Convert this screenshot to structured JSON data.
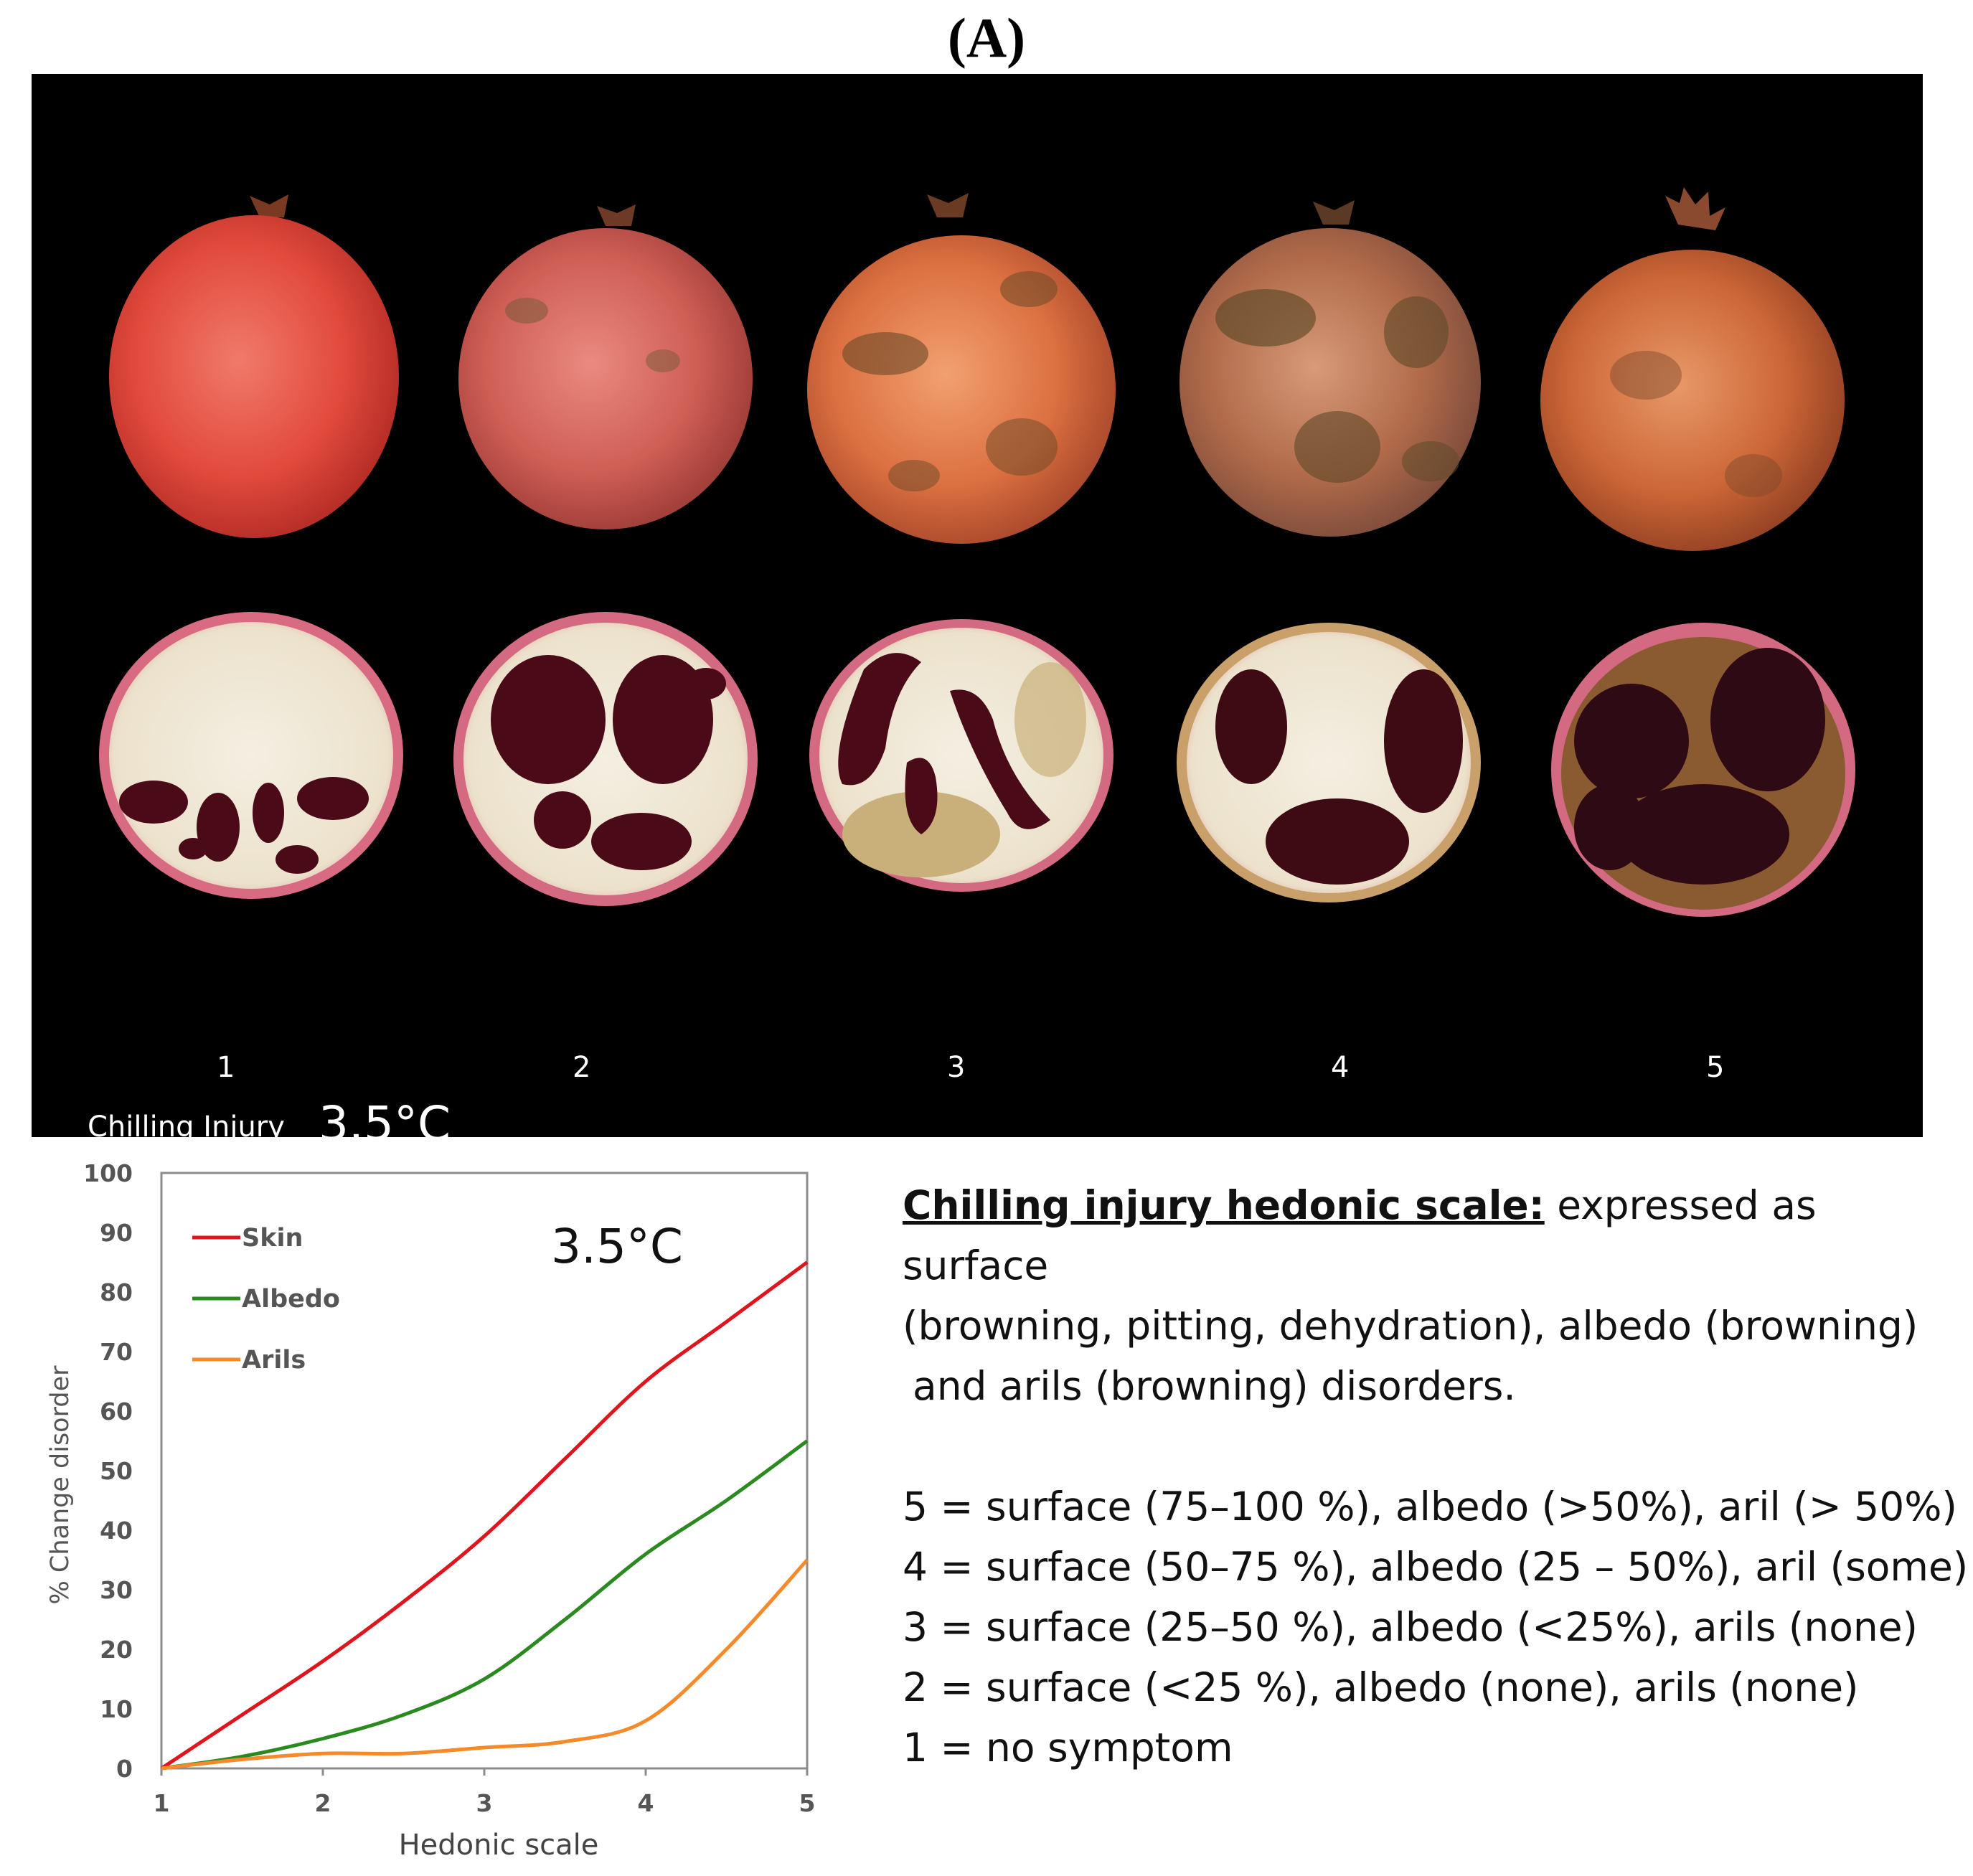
{
  "figure": {
    "panel_label": "(A)"
  },
  "photo": {
    "grades": [
      "1",
      "2",
      "3",
      "4",
      "5"
    ],
    "caption": "Chilling Injury",
    "temperature": "3.5°C"
  },
  "chart_data": {
    "type": "line",
    "title": "3.5°C",
    "xlabel": "Hedonic scale",
    "ylabel": "% Change disorder",
    "xlim": [
      1,
      5
    ],
    "ylim": [
      0,
      100
    ],
    "xticks": [
      "1",
      "2",
      "3",
      "4",
      "5"
    ],
    "yticks": [
      "0",
      "10",
      "20",
      "30",
      "40",
      "50",
      "60",
      "70",
      "80",
      "90",
      "100"
    ],
    "grid": false,
    "legend": "top-left",
    "x": [
      1,
      1.5,
      2,
      2.5,
      3,
      3.5,
      4,
      4.5,
      5
    ],
    "series": [
      {
        "name": "Skin",
        "color": "#e0141c",
        "values": [
          0,
          9,
          18,
          28,
          39,
          52,
          65,
          75,
          85
        ]
      },
      {
        "name": "Albedo",
        "color": "#2a8a1f",
        "values": [
          0,
          2,
          5,
          9,
          15,
          25,
          36,
          45,
          55
        ]
      },
      {
        "name": "Arils",
        "color": "#f58a2a",
        "values": [
          0,
          1.5,
          2.5,
          2.5,
          3.5,
          4.5,
          8,
          20,
          35
        ]
      }
    ]
  },
  "scale": {
    "heading": "Chilling injury hedonic scale:",
    "intro_line1": "expressed as surface",
    "intro_line2": "(browning, pitting, dehydration), albedo (browning)",
    "intro_line3": "and arils (browning) disorders.",
    "items": [
      "5 = surface (75–100 %), albedo (>50%), aril (> 50%)",
      "4 = surface (50–75 %), albedo (25 – 50%), aril (some)",
      "3 = surface (25–50 %), albedo (<25%), arils (none)",
      "2 = surface (<25 %), albedo (none), arils (none)",
      "1 = no symptom"
    ]
  },
  "colors": {
    "photo_background": "#000000",
    "skin_line": "#e0141c",
    "albedo_line": "#2a8a1f",
    "arils_line": "#f58a2a"
  }
}
